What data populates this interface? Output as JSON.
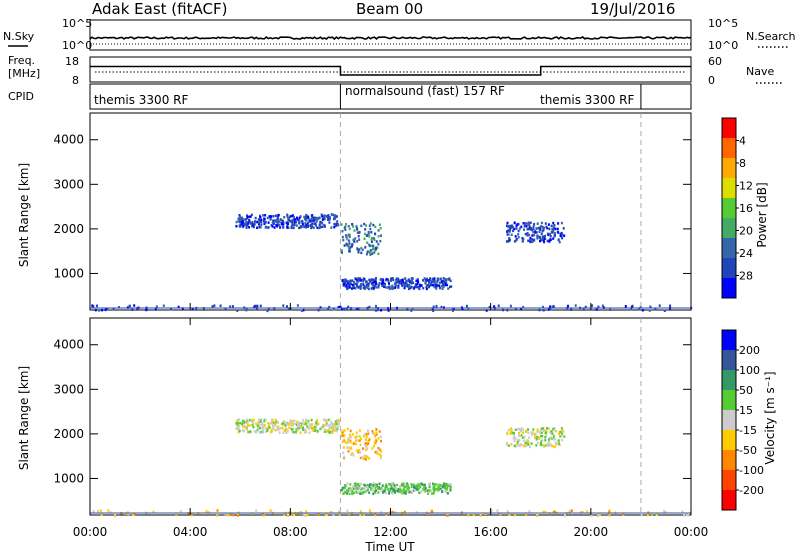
{
  "header": {
    "station": "Adak East (fitACF)",
    "beam": "Beam 00",
    "date": "19/Jul/2016"
  },
  "noise_panel": {
    "left_label": "N.Sky",
    "right_label": "N.Search",
    "left_ticks": [
      "10^5",
      "10^0"
    ],
    "right_ticks": [
      "10^5",
      "10^0"
    ]
  },
  "freq_panel": {
    "left_label_line1": "Freq.",
    "left_label_line2": "[MHz]",
    "right_label": "Nave",
    "left_ticks": [
      "18",
      "8"
    ],
    "right_ticks": [
      "60",
      "0"
    ],
    "freq_segments": [
      {
        "start": 0.0,
        "end": 10.0,
        "value": 14.2
      },
      {
        "start": 10.0,
        "end": 18.0,
        "value": 10.8
      },
      {
        "start": 18.0,
        "end": 24.0,
        "value": 14.2
      }
    ]
  },
  "cpid_panel": {
    "label": "CPID",
    "modes": [
      {
        "start": 0.0,
        "end": 10.0,
        "text": "themis 3300 RF"
      },
      {
        "start": 10.0,
        "end": 22.0,
        "text": "normalsound (fast) 157 RF"
      },
      {
        "start": 18.0,
        "end": 22.0,
        "text": "themis 3300 RF"
      }
    ],
    "boundaries": [
      10.0,
      22.0
    ]
  },
  "colors": {
    "power_scale": [
      "#0000ff",
      "#2244bb",
      "#3366aa",
      "#44aa66",
      "#55cc33",
      "#dddd00",
      "#ffaa00",
      "#ff6600",
      "#ff0000"
    ],
    "velocity_scale": [
      "#0000ff",
      "#335599",
      "#339966",
      "#55cc33",
      "#cccccc",
      "#ffcc00",
      "#ff8800",
      "#ff4400",
      "#ff0000"
    ]
  },
  "chart_data": [
    {
      "type": "heatmap",
      "title": "",
      "ylabel": "Slant Range [km]",
      "xlabel": "",
      "xlim": [
        0,
        24
      ],
      "ylim": [
        180,
        4600
      ],
      "yticks": [
        "1000",
        "2000",
        "3000",
        "4000"
      ],
      "colorbar": {
        "label": "Power [dB]",
        "ticks": [
          "4",
          "8",
          "12",
          "16",
          "20",
          "24",
          "28"
        ]
      },
      "scatter_regions": [
        {
          "x_start": 5.8,
          "x_end": 9.9,
          "range_center": 2200,
          "range_spread": 150,
          "level": 1
        },
        {
          "x_start": 10.0,
          "x_end": 11.6,
          "range_center": 1800,
          "range_spread": 350,
          "level": 2
        },
        {
          "x_start": 10.0,
          "x_end": 14.4,
          "range_center": 800,
          "range_spread": 120,
          "level": 1
        },
        {
          "x_start": 16.6,
          "x_end": 18.9,
          "range_center": 1950,
          "range_spread": 220,
          "level": 1
        },
        {
          "x_start": 0.0,
          "x_end": 24.0,
          "range_center": 250,
          "range_spread": 60,
          "level": 1
        }
      ]
    },
    {
      "type": "heatmap",
      "title": "",
      "ylabel": "Slant Range [km]",
      "xlabel": "Time UT",
      "xlim": [
        0,
        24
      ],
      "ylim": [
        180,
        4600
      ],
      "xticks": [
        "00:00",
        "04:00",
        "08:00",
        "12:00",
        "16:00",
        "20:00",
        "00:00"
      ],
      "yticks": [
        "1000",
        "2000",
        "3000",
        "4000"
      ],
      "colorbar": {
        "label": "Velocity [m s⁻¹]",
        "ticks": [
          "200",
          "100",
          "50",
          "15",
          "-15",
          "-50",
          "-100",
          "-200"
        ]
      },
      "scatter_regions": [
        {
          "x_start": 5.8,
          "x_end": 9.9,
          "range_center": 2200,
          "range_spread": 150,
          "level": 4
        },
        {
          "x_start": 10.0,
          "x_end": 11.6,
          "range_center": 1800,
          "range_spread": 350,
          "level": 5
        },
        {
          "x_start": 10.0,
          "x_end": 14.4,
          "range_center": 800,
          "range_spread": 120,
          "level": 3
        },
        {
          "x_start": 16.6,
          "x_end": 18.9,
          "range_center": 1950,
          "range_spread": 220,
          "level": 4
        },
        {
          "x_start": 0.0,
          "x_end": 24.0,
          "range_center": 250,
          "range_spread": 60,
          "level": 5
        }
      ]
    }
  ]
}
